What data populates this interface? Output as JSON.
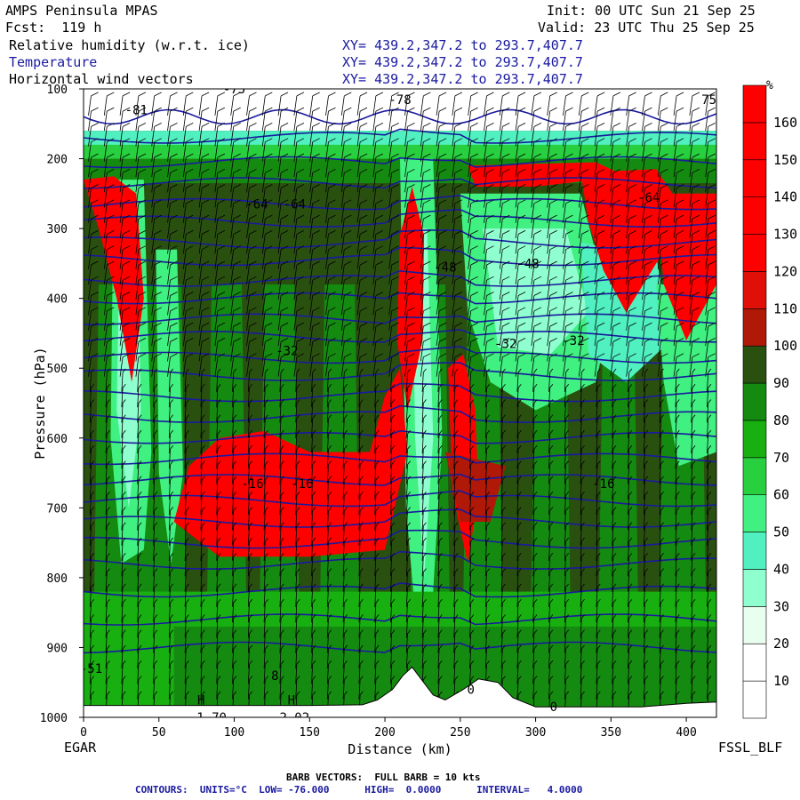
{
  "header": {
    "model": "AMPS Peninsula MPAS",
    "fcst": "Fcst:  119 h",
    "init": "Init: 00 UTC Sun 21 Sep 25",
    "valid": "Valid: 23 UTC Thu 25 Sep 25",
    "fields": [
      {
        "name": "Relative humidity (w.r.t. ice)",
        "xy": "XY= 439.2,347.2 to 293.7,407.7"
      },
      {
        "name": "Temperature",
        "xy": "XY= 439.2,347.2 to 293.7,407.7"
      },
      {
        "name": "Horizontal wind vectors",
        "xy": "XY= 439.2,347.2 to 293.7,407.7"
      }
    ]
  },
  "labels": {
    "left_station": "EGAR",
    "right_station": "FSSL_BLF",
    "footer_barbs": "BARB VECTORS:  FULL BARB = 10 kts",
    "footer_contours": "CONTOURS:  UNITS=°C  LOW= -76.000      HIGH=  0.0000      INTERVAL=   4.0000"
  },
  "colors": {
    "rh_scale": [
      "#ffffff",
      "#ffffff",
      "#e8fff0",
      "#90ffd0",
      "#50f0c0",
      "#40f080",
      "#28d040",
      "#18b010",
      "#158a10",
      "#2a5010",
      "#b01808",
      "#e01008",
      "#ff0000",
      "#ff0000",
      "#ff0000",
      "#ff0000",
      "#ff0000"
    ],
    "contour": "#1a1aa0",
    "barb": "#000000"
  },
  "chart_data": {
    "type": "heatmap",
    "title": "Relative humidity (w.r.t. ice)",
    "xlabel": "Distance (km)",
    "ylabel": "Pressure (hPa)",
    "xlim": [
      0,
      420
    ],
    "ylim": [
      1000,
      100
    ],
    "x_ticks": [
      0,
      50,
      100,
      150,
      200,
      250,
      300,
      350,
      400
    ],
    "y_ticks": [
      100,
      200,
      300,
      400,
      500,
      600,
      700,
      800,
      900,
      1000
    ],
    "colorbar": {
      "unit": "%",
      "ticks": [
        10,
        20,
        30,
        40,
        50,
        60,
        70,
        80,
        90,
        100,
        110,
        120,
        130,
        140,
        150,
        160
      ]
    },
    "temperature_labels": [
      {
        "x": 35,
        "p": 130,
        "text": "-81"
      },
      {
        "x": 100,
        "p": 100,
        "text": "-75"
      },
      {
        "x": 210,
        "p": 115,
        "text": "-78"
      },
      {
        "x": 420,
        "p": 115,
        "text": "75.3"
      },
      {
        "x": 115,
        "p": 265,
        "text": "-64"
      },
      {
        "x": 140,
        "p": 265,
        "text": "-64"
      },
      {
        "x": 375,
        "p": 255,
        "text": "-64"
      },
      {
        "x": 240,
        "p": 355,
        "text": "-48"
      },
      {
        "x": 295,
        "p": 350,
        "text": "-48"
      },
      {
        "x": 135,
        "p": 475,
        "text": "-32"
      },
      {
        "x": 280,
        "p": 465,
        "text": "-32"
      },
      {
        "x": 325,
        "p": 460,
        "text": "-32"
      },
      {
        "x": 112,
        "p": 665,
        "text": "-16"
      },
      {
        "x": 145,
        "p": 665,
        "text": "-16"
      },
      {
        "x": 345,
        "p": 665,
        "text": "-16"
      },
      {
        "x": 5,
        "p": 930,
        "text": "-51"
      },
      {
        "x": 127,
        "p": 940,
        "text": "8"
      },
      {
        "x": 257,
        "p": 960,
        "text": "0"
      },
      {
        "x": 312,
        "p": 985,
        "text": "0"
      },
      {
        "x": 78,
        "p": 975,
        "text": "H"
      },
      {
        "x": 138,
        "p": 975,
        "text": "H"
      },
      {
        "x": 85,
        "p": 1000,
        "text": "1.70"
      },
      {
        "x": 140,
        "p": 1000,
        "text": "2.02"
      }
    ],
    "terrain": [
      [
        0,
        983
      ],
      [
        50,
        983
      ],
      [
        100,
        983
      ],
      [
        150,
        983
      ],
      [
        185,
        982
      ],
      [
        195,
        975
      ],
      [
        205,
        960
      ],
      [
        212,
        940
      ],
      [
        218,
        928
      ],
      [
        224,
        945
      ],
      [
        232,
        968
      ],
      [
        240,
        975
      ],
      [
        252,
        960
      ],
      [
        262,
        945
      ],
      [
        275,
        950
      ],
      [
        285,
        972
      ],
      [
        300,
        985
      ],
      [
        330,
        985
      ],
      [
        370,
        985
      ],
      [
        400,
        980
      ],
      [
        420,
        978
      ]
    ]
  }
}
